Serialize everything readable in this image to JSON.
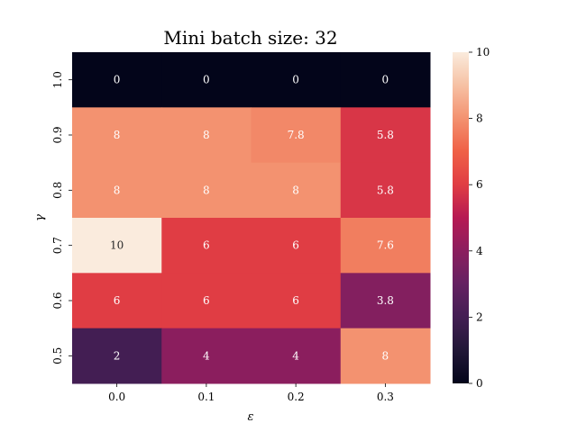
{
  "chart_data": {
    "type": "heatmap",
    "title": "Mini batch size: 32",
    "xlabel": "ε",
    "ylabel": "γ",
    "x_categories": [
      "0.0",
      "0.1",
      "0.2",
      "0.3"
    ],
    "y_categories": [
      "1.0",
      "0.9",
      "0.8",
      "0.7",
      "0.6",
      "0.5"
    ],
    "values": [
      [
        0,
        0,
        0,
        0
      ],
      [
        8,
        8,
        7.8,
        5.8
      ],
      [
        8,
        8,
        8,
        5.8
      ],
      [
        10,
        6,
        6,
        7.6
      ],
      [
        6,
        6,
        6,
        3.8
      ],
      [
        2,
        4,
        4,
        8
      ]
    ],
    "value_labels": [
      [
        "0",
        "0",
        "0",
        "0"
      ],
      [
        "8",
        "8",
        "7.8",
        "5.8"
      ],
      [
        "8",
        "8",
        "8",
        "5.8"
      ],
      [
        "10",
        "6",
        "6",
        "7.6"
      ],
      [
        "6",
        "6",
        "6",
        "3.8"
      ],
      [
        "2",
        "4",
        "4",
        "8"
      ]
    ],
    "colorbar": {
      "range": [
        0,
        10
      ],
      "ticks": [
        "0",
        "2",
        "4",
        "6",
        "8",
        "10"
      ],
      "colormap": "rocket"
    }
  }
}
